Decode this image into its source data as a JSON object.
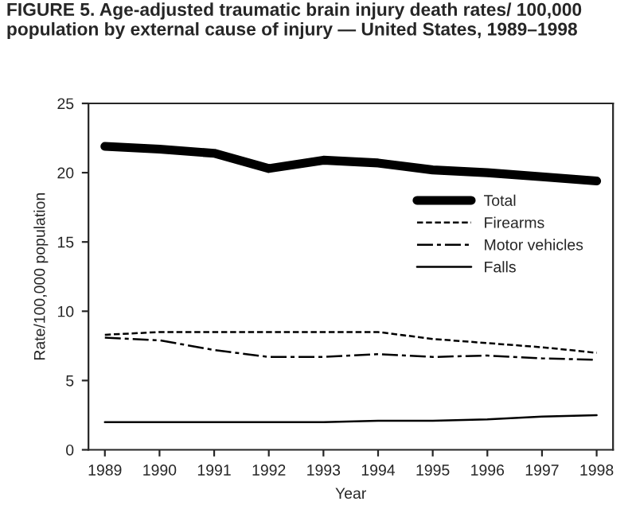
{
  "chart_data": {
    "type": "line",
    "title": "FIGURE 5. Age-adjusted traumatic brain injury death rates/ 100,000 population by external cause of injury — United States, 1989–1998",
    "xlabel": "Year",
    "ylabel": "Rate/100,000 population",
    "categories": [
      "1989",
      "1990",
      "1991",
      "1992",
      "1993",
      "1994",
      "1995",
      "1996",
      "1997",
      "1998"
    ],
    "series": [
      {
        "name": "Total",
        "color": "#000000",
        "line_style": "solid",
        "values": [
          21.9,
          21.7,
          21.4,
          20.3,
          20.9,
          20.7,
          20.2,
          20.0,
          19.7,
          19.4
        ]
      },
      {
        "name": "Firearms",
        "color": "#000000",
        "line_style": "dashed",
        "values": [
          8.3,
          8.5,
          8.5,
          8.5,
          8.5,
          8.5,
          8.0,
          7.7,
          7.4,
          7.0
        ]
      },
      {
        "name": "Motor vehicles",
        "color": "#000000",
        "line_style": "dashdot",
        "values": [
          8.1,
          7.9,
          7.2,
          6.7,
          6.7,
          6.9,
          6.7,
          6.8,
          6.6,
          6.5
        ]
      },
      {
        "name": "Falls",
        "color": "#000000",
        "line_style": "solid",
        "values": [
          2.0,
          2.0,
          2.0,
          2.0,
          2.0,
          2.1,
          2.1,
          2.2,
          2.4,
          2.5
        ]
      }
    ],
    "ylim": [
      0,
      25
    ],
    "yticks": [
      0,
      5,
      10,
      15,
      20,
      25
    ],
    "grid": false,
    "legend": "right",
    "marker": "none"
  }
}
